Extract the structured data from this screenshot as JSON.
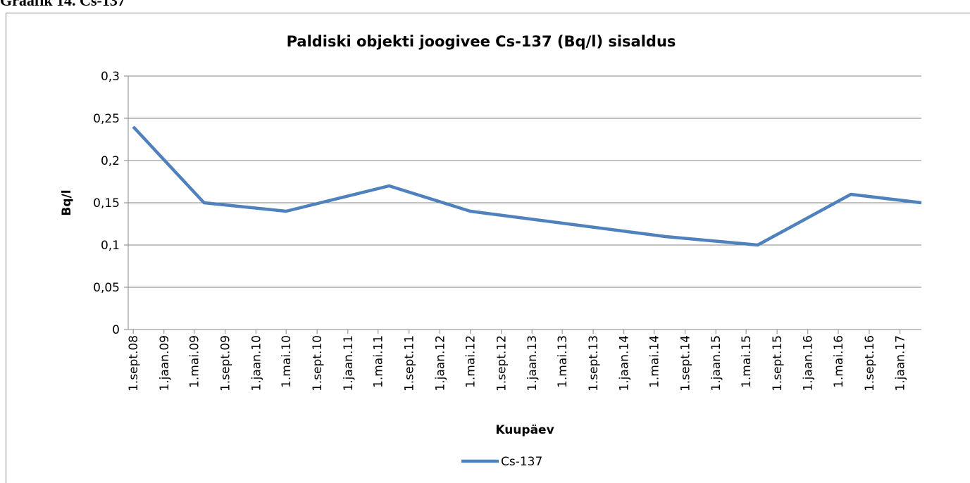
{
  "caption": "Graafik 14. Cs-137",
  "chart_data": {
    "type": "line",
    "title": "Paldiski objekti joogivee Cs-137 (Bq/l) sisaldus",
    "x_label": "Kuupäev",
    "y_label": "Bq/l",
    "x": [
      "2008-09-01",
      "2009-06-09",
      "2010-05-01",
      "2011-06-14",
      "2012-05-01",
      "2014-06-15",
      "2015-06-16",
      "2016-06-20",
      "2017-03-27"
    ],
    "series": [
      {
        "name": "Cs-137",
        "color": "#4f81bd",
        "values": [
          0.24,
          0.15,
          0.14,
          0.17,
          0.14,
          0.11,
          0.1,
          0.16,
          0.15
        ]
      }
    ],
    "xlim": [
      "2008-08-12",
      "2017-03-27"
    ],
    "xticks": [
      {
        "value": "2008-09-01",
        "label": "1.sept.08"
      },
      {
        "value": "2009-01-01",
        "label": "1.jaan.09"
      },
      {
        "value": "2009-05-01",
        "label": "1.mai.09"
      },
      {
        "value": "2009-09-01",
        "label": "1.sept.09"
      },
      {
        "value": "2010-01-01",
        "label": "1.jaan.10"
      },
      {
        "value": "2010-05-01",
        "label": "1.mai.10"
      },
      {
        "value": "2010-09-01",
        "label": "1.sept.10"
      },
      {
        "value": "2011-01-01",
        "label": "1.jaan.11"
      },
      {
        "value": "2011-05-01",
        "label": "1.mai.11"
      },
      {
        "value": "2011-09-01",
        "label": "1.sept.11"
      },
      {
        "value": "2012-01-01",
        "label": "1.jaan.12"
      },
      {
        "value": "2012-05-01",
        "label": "1.mai.12"
      },
      {
        "value": "2012-09-01",
        "label": "1.sept.12"
      },
      {
        "value": "2013-01-01",
        "label": "1.jaan.13"
      },
      {
        "value": "2013-05-01",
        "label": "1.mai.13"
      },
      {
        "value": "2013-09-01",
        "label": "1.sept.13"
      },
      {
        "value": "2014-01-01",
        "label": "1.jaan.14"
      },
      {
        "value": "2014-05-01",
        "label": "1.mai.14"
      },
      {
        "value": "2014-09-01",
        "label": "1.sept.14"
      },
      {
        "value": "2015-01-01",
        "label": "1.jaan.15"
      },
      {
        "value": "2015-05-01",
        "label": "1.mai.15"
      },
      {
        "value": "2015-09-01",
        "label": "1.sept.15"
      },
      {
        "value": "2016-01-01",
        "label": "1.jaan.16"
      },
      {
        "value": "2016-05-01",
        "label": "1.mai.16"
      },
      {
        "value": "2016-09-01",
        "label": "1.sept.16"
      },
      {
        "value": "2017-01-01",
        "label": "1.jaan.17"
      }
    ],
    "ylim": [
      0,
      0.3
    ],
    "yticks": [
      0,
      {
        "value": 0.05,
        "label": "0,05"
      },
      {
        "value": 0.1,
        "label": "0,1"
      },
      {
        "value": 0.15,
        "label": "0,15"
      },
      {
        "value": 0.2,
        "label": "0,2"
      },
      {
        "value": 0.25,
        "label": "0,25"
      },
      {
        "value": 0.3,
        "label": "0,3"
      }
    ],
    "grid": true,
    "legend": "bottom"
  }
}
